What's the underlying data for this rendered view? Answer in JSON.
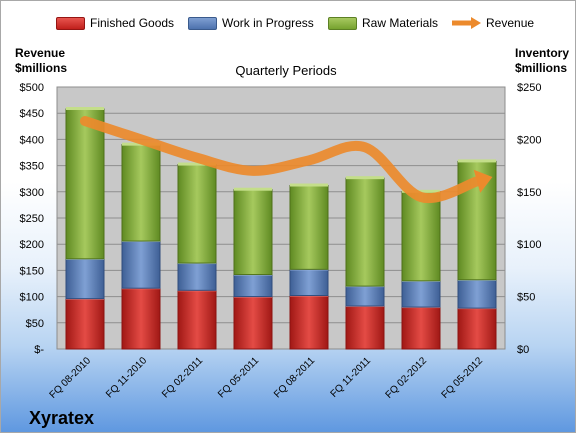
{
  "legend": {
    "finished_goods": "Finished Goods",
    "work_in_progress": "Work in Progress",
    "raw_materials": "Raw Materials",
    "revenue": "Revenue"
  },
  "left_axis_title": [
    "Revenue",
    "$millions"
  ],
  "right_axis_title": [
    "Inventory",
    "$millions"
  ],
  "chart_title": "Quarterly Periods",
  "brand": "Xyratex",
  "colors": {
    "finished_goods": "#c0201c",
    "work_in_progress": "#4d72ad",
    "raw_materials": "#76a22f",
    "revenue": "#ec8a2c",
    "plot_background": "#c8c8c8"
  },
  "chart_data": {
    "type": "bar",
    "stacked": true,
    "categories": [
      "FQ 08-2010",
      "FQ 11-2010",
      "FQ 02-2011",
      "FQ 05-2011",
      "FQ 08-2011",
      "FQ 11-2011",
      "FQ 02-2012",
      "FQ 05-2012"
    ],
    "series": [
      {
        "name": "Finished Goods",
        "axis": "right",
        "values": [
          48,
          58,
          56,
          50,
          51,
          41,
          40,
          39
        ]
      },
      {
        "name": "Work in Progress",
        "axis": "right",
        "values": [
          38,
          45,
          26,
          21,
          25,
          19,
          25,
          27
        ]
      },
      {
        "name": "Raw Materials",
        "axis": "right",
        "values": [
          143,
          92,
          94,
          81,
          80,
          103,
          85,
          113
        ]
      },
      {
        "name": "Revenue",
        "axis": "left",
        "type": "line",
        "values": [
          435,
          400,
          365,
          340,
          360,
          385,
          290,
          320
        ]
      }
    ],
    "left_axis": {
      "label": "Revenue $millions",
      "ylim": [
        0,
        500
      ],
      "ticks": [
        "$-",
        "$50",
        "$100",
        "$150",
        "$200",
        "$250",
        "$300",
        "$350",
        "$400",
        "$450",
        "$500"
      ]
    },
    "right_axis": {
      "label": "Inventory $millions",
      "ylim": [
        0,
        250
      ],
      "ticks": [
        "$0",
        "$50",
        "$100",
        "$150",
        "$200",
        "$250"
      ]
    },
    "grid": true,
    "legend_position": "top"
  }
}
